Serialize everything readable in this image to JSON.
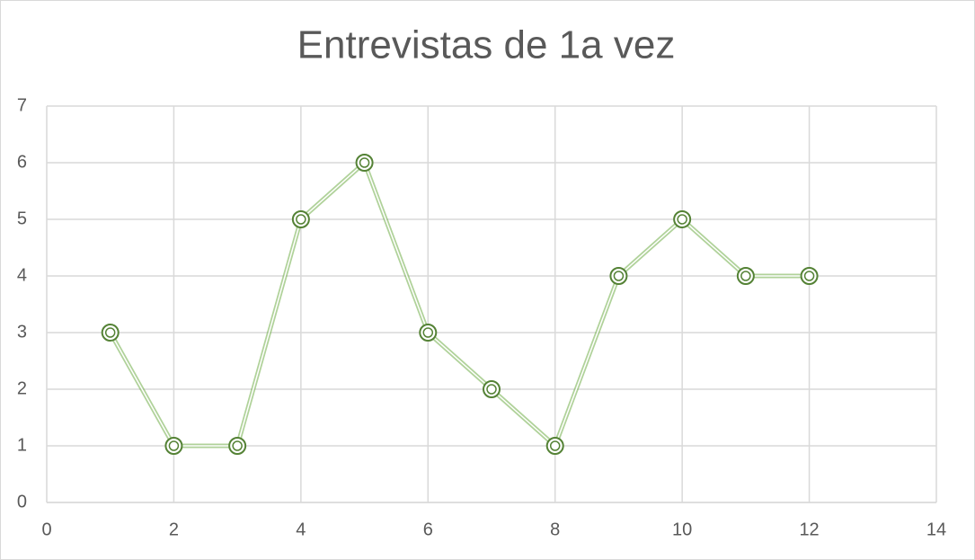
{
  "chart_data": {
    "type": "scatter-line",
    "title": "Entrevistas de 1a vez",
    "x": [
      1,
      2,
      3,
      4,
      5,
      6,
      7,
      8,
      9,
      10,
      11,
      12
    ],
    "values": [
      3,
      1,
      1,
      5,
      6,
      3,
      2,
      1,
      4,
      5,
      4,
      4
    ],
    "color": "#70ad47",
    "xlim": [
      0,
      14
    ],
    "xticks": [
      0,
      2,
      4,
      6,
      8,
      10,
      12,
      14
    ],
    "ylim": [
      0,
      7
    ],
    "yticks": [
      0,
      1,
      2,
      3,
      4,
      5,
      6,
      7
    ],
    "grid": true
  }
}
